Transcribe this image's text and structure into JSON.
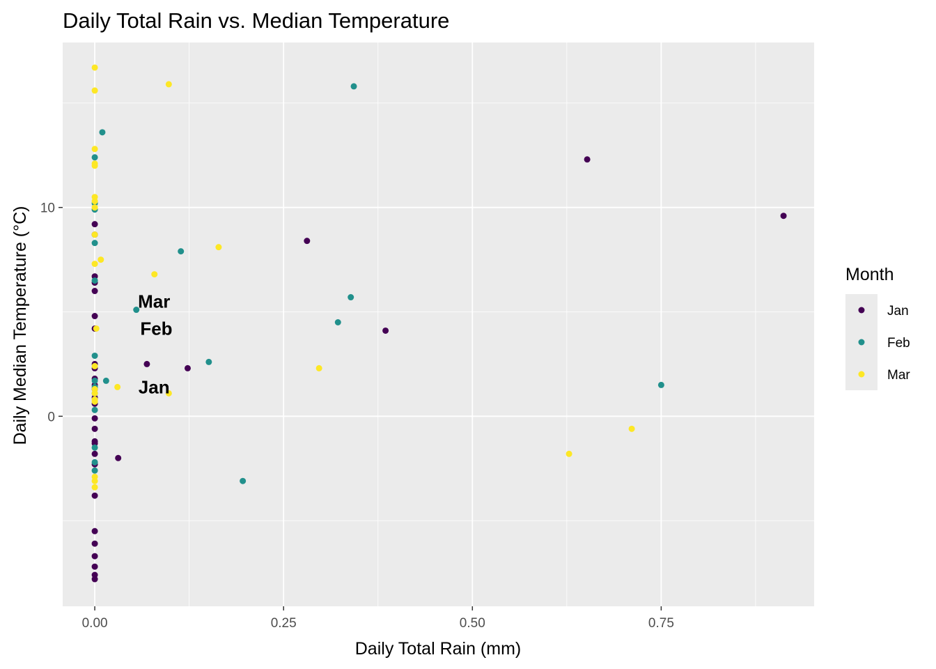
{
  "chart_data": {
    "type": "scatter",
    "title": "Daily Total Rain vs. Median Temperature",
    "xlabel": "Daily Total Rain (mm)",
    "ylabel": "Daily Median Temperature (°C)",
    "xlim": [
      -0.0425,
      0.9525
    ],
    "ylim": [
      -9.1,
      17.9
    ],
    "x_ticks": [
      0.0,
      0.25,
      0.5,
      0.75
    ],
    "x_tick_labels": [
      "0.00",
      "0.25",
      "0.50",
      "0.75"
    ],
    "y_ticks": [
      0,
      10
    ],
    "y_tick_labels": [
      "0",
      "10"
    ],
    "grid": true,
    "legend": {
      "title": "Month",
      "position": "right",
      "entries": [
        {
          "label": "Jan",
          "color": "#440154"
        },
        {
          "label": "Feb",
          "color": "#21908C"
        },
        {
          "label": "Mar",
          "color": "#FDE725"
        }
      ]
    },
    "annotations": [
      {
        "text": "Mar",
        "x": 0.0785,
        "y": 5.5
      },
      {
        "text": "Feb",
        "x": 0.0815,
        "y": 4.2
      },
      {
        "text": "Jan",
        "x": 0.0785,
        "y": 1.4
      }
    ],
    "series": [
      {
        "name": "Jan",
        "color": "#440154",
        "x": [
          0,
          0,
          0,
          0,
          0,
          0,
          0,
          0,
          0,
          0,
          0,
          0,
          0,
          0,
          0,
          0,
          0,
          0,
          0,
          0,
          0,
          0,
          0,
          0,
          0,
          0,
          0,
          0.031,
          0.069,
          0.123,
          0.281,
          0.385,
          0.652,
          0.912
        ],
        "y": [
          9.2,
          8.7,
          6.7,
          6.4,
          6.0,
          4.8,
          4.2,
          2.3,
          1.8,
          1.5,
          0.9,
          -0.1,
          -1.3,
          -1.8,
          -2.3,
          -3.8,
          -5.5,
          -6.1,
          -6.7,
          -7.2,
          -7.6,
          -7.8,
          2.5,
          1.3,
          0.6,
          -0.6,
          -1.2,
          -2.0,
          2.5,
          2.3,
          8.4,
          4.1,
          12.3,
          9.6
        ]
      },
      {
        "name": "Feb",
        "color": "#21908C",
        "x": [
          0,
          0,
          0,
          0,
          0,
          0,
          0,
          0,
          0,
          0,
          0,
          0,
          0,
          0.01,
          0.015,
          0.055,
          0.114,
          0.151,
          0.196,
          0.322,
          0.339,
          0.343,
          0.75
        ],
        "y": [
          12.4,
          10.2,
          9.9,
          8.3,
          6.5,
          2.9,
          1.7,
          1.1,
          0.3,
          -1.5,
          -2.6,
          -2.2,
          1.4,
          13.6,
          1.7,
          5.1,
          7.9,
          2.6,
          -3.1,
          4.5,
          5.7,
          15.8,
          1.5
        ]
      },
      {
        "name": "Mar",
        "color": "#FDE725",
        "x": [
          0,
          0,
          0,
          0,
          0,
          0,
          0,
          0,
          0,
          0,
          0,
          0,
          0,
          0,
          0,
          0,
          0,
          0,
          0.002,
          0.008,
          0.03,
          0.079,
          0.098,
          0.098,
          0.164,
          0.297,
          0.628,
          0.711
        ],
        "y": [
          16.7,
          15.6,
          12.8,
          12.1,
          12.0,
          10.5,
          10.3,
          10.0,
          8.7,
          7.3,
          2.4,
          1.3,
          1.1,
          0.8,
          0.7,
          -2.9,
          -3.4,
          -3.1,
          4.2,
          7.5,
          1.4,
          6.8,
          15.9,
          1.1,
          8.1,
          2.3,
          -1.8,
          -0.6
        ]
      }
    ]
  }
}
